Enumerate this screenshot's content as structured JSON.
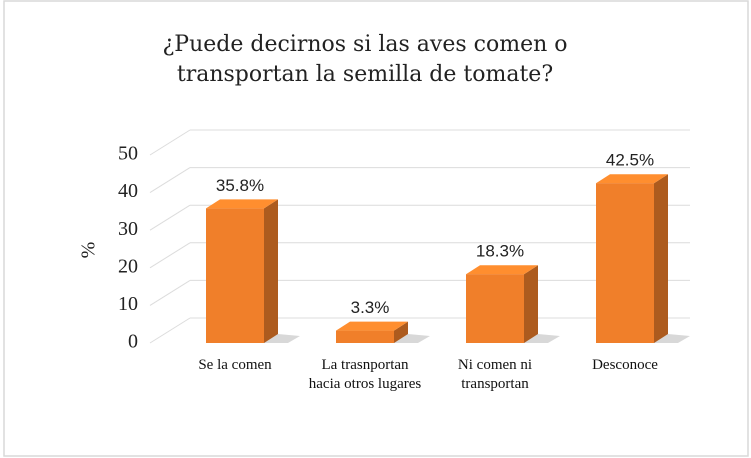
{
  "chart_data": {
    "type": "bar3d",
    "title": "¿Puede decirnos si las aves comen o transportan la semilla de tomate?",
    "ylabel": "%",
    "categories": [
      "Se la comen",
      "La trasnportan hacia otros lugares",
      "Ni comen ni transportan",
      "Desconoce"
    ],
    "values": [
      35.8,
      3.3,
      18.3,
      42.5
    ],
    "value_labels": [
      "35.8%",
      "3.3%",
      "18.3%",
      "42.5%"
    ],
    "color": "#f07f2a",
    "ylim": [
      0,
      50
    ],
    "yticks": [
      0,
      10,
      20,
      30,
      40,
      50
    ],
    "grid": true
  }
}
